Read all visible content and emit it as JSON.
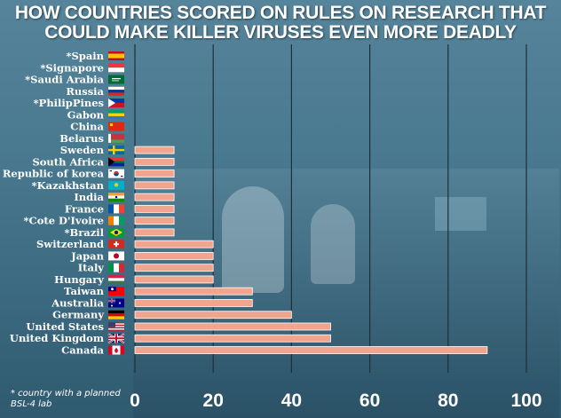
{
  "title": "HOW COUNTRIES SCORED ON RULES ON RESEARCH THAT COULD MAKE KILLER VIRUSES EVEN MORE DEADLY",
  "footnote": "* country with a planned BSL-4 lab",
  "colors": {
    "bar": "#f2a58e",
    "bar_edge": "#ffffff",
    "grid": "#1d2f3a",
    "background": "#4a7a90"
  },
  "chart_data": {
    "type": "bar",
    "orientation": "horizontal",
    "title": "HOW COUNTRIES SCORED ON RULES ON RESEARCH THAT COULD MAKE KILLER VIRUSES EVEN MORE DEADLY",
    "xlim": [
      0,
      100
    ],
    "xticks": [
      0,
      20,
      40,
      60,
      80,
      100
    ],
    "grid": true,
    "categories": [
      "*Spain",
      "*Signapore",
      "*Saudi Arabia",
      "Russia",
      "*PhilipPines",
      "Gabon",
      "China",
      "Belarus",
      "Sweden",
      "South Africa",
      "Republic of korea",
      "*Kazakhstan",
      "India",
      "France",
      "*Cote D'Ivoire",
      "*Brazil",
      "Switzerland",
      "Japan",
      "Italy",
      "Hungary",
      "Taiwan",
      "Australia",
      "Germany",
      "United States",
      "United Kingdom",
      "Canada"
    ],
    "flags": [
      "spain",
      "singapore",
      "saudi-arabia",
      "russia",
      "philippines",
      "gabon",
      "china",
      "belarus",
      "sweden",
      "south-africa",
      "south-korea",
      "kazakhstan",
      "india",
      "france",
      "cote-divoire",
      "brazil",
      "switzerland",
      "japan",
      "italy",
      "hungary",
      "taiwan",
      "australia",
      "germany",
      "united-states",
      "united-kingdom",
      "canada"
    ],
    "values": [
      0,
      0,
      0,
      0,
      0,
      0,
      0,
      0,
      10,
      10,
      10,
      10,
      10,
      10,
      10,
      10,
      20,
      20,
      20,
      20,
      30,
      30,
      40,
      50,
      50,
      90
    ]
  }
}
